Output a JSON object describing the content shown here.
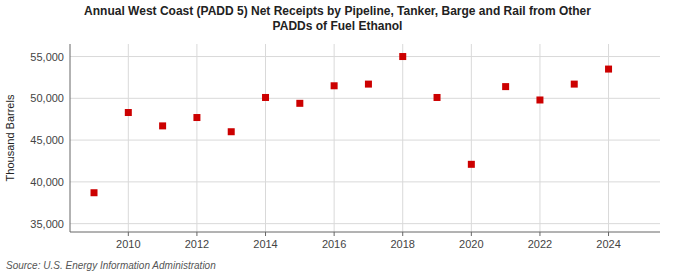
{
  "chart_data": {
    "type": "scatter",
    "title": "Annual West Coast (PADD 5) Net Receipts by Pipeline, Tanker, Barge and Rail from Other\nPADDs of Fuel Ethanol",
    "y_label": "Thousand Barrels",
    "source": "Source: U.S. Energy Information Administration",
    "x": [
      2009,
      2010,
      2011,
      2012,
      2013,
      2014,
      2015,
      2016,
      2017,
      2018,
      2019,
      2020,
      2021,
      2022,
      2023,
      2024
    ],
    "values": [
      38700,
      48300,
      46700,
      47700,
      46000,
      50100,
      49400,
      51500,
      51700,
      55000,
      50100,
      42100,
      51400,
      49800,
      51700,
      53500
    ],
    "color": "#cc0000",
    "marker": "square",
    "xlim": [
      2008.3,
      2025.5
    ],
    "xticks": [
      2010,
      2012,
      2014,
      2016,
      2018,
      2020,
      2022,
      2024
    ],
    "ylim": [
      34000,
      56500
    ],
    "yticks": [
      {
        "value": 35000,
        "label": "35,000"
      },
      {
        "value": 40000,
        "label": "40,000"
      },
      {
        "value": 45000,
        "label": "45,000"
      },
      {
        "value": 50000,
        "label": "50,000"
      },
      {
        "value": 55000,
        "label": "55,000"
      }
    ],
    "grid": true
  }
}
